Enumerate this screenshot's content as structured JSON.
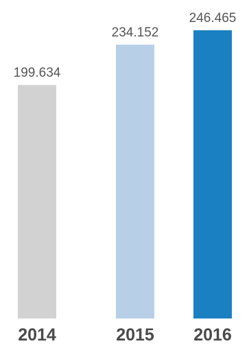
{
  "chart_data": {
    "type": "bar",
    "categories": [
      "2014",
      "2015",
      "2016"
    ],
    "values": [
      199.634,
      234.152,
      246.465
    ],
    "value_labels": [
      "199.634",
      "234.152",
      "246.465"
    ],
    "colors": [
      "#d2d2d2",
      "#b8cfe8",
      "#1a80c1"
    ],
    "title": "",
    "xlabel": "",
    "ylabel": "",
    "grid": false,
    "legend": "none"
  }
}
